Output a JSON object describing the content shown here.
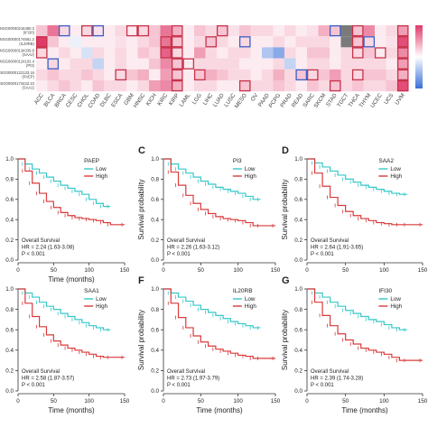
{
  "colors": {
    "low": "#37c7c7",
    "high": "#d93a3a",
    "heat_high": "#e03a6a",
    "heat_low": "#3a6fd8",
    "box_red": "#c8324a",
    "box_blue": "#3a5fc8",
    "grey": "#7a7a7a",
    "axis": "#333333"
  },
  "heatmap": {
    "row_labels": [
      "ENSG00000216490.3\n(IFI30)",
      "ENSG00000174561.2\n(IL20RB)",
      "ENSG00000134339.8\n(SAA2)",
      "ENSG00000124102.4\n(PI3)",
      "ENSG00000122133.16\n(PAEP)",
      "ENSG00000173432.10\n(SAA1)"
    ],
    "columns": [
      "ACC",
      "BLCA",
      "BRCA",
      "CESC",
      "CHOL",
      "COAD",
      "DLBC",
      "ESCA",
      "GBM",
      "HNSC",
      "KICH",
      "KIRC",
      "KIRP",
      "LAML",
      "LGG",
      "LIHC",
      "LUAD",
      "LUSC",
      "MESO",
      "OV",
      "PAAD",
      "PCPG",
      "PRAD",
      "READ",
      "SARC",
      "SKCM",
      "STAD",
      "TGCT",
      "THCA",
      "THYM",
      "UCEC",
      "UCS",
      "UVM"
    ],
    "values": [
      [
        0.3,
        0.7,
        0.2,
        0.1,
        0.2,
        0.15,
        0.1,
        0.2,
        0.1,
        0.2,
        0.3,
        0.7,
        0.4,
        0.1,
        0.3,
        0.2,
        0.3,
        0.15,
        0.3,
        0.2,
        0.2,
        0.1,
        0.2,
        0.1,
        0.15,
        0.4,
        0.3,
        0.4,
        0.3,
        0.6,
        0.1,
        0.2,
        0.5
      ],
      [
        1.0,
        0.3,
        0.1,
        -0.1,
        0.1,
        0.1,
        0.1,
        0.15,
        0.1,
        0.2,
        0.3,
        0.7,
        0.3,
        0.1,
        0.2,
        0.3,
        0.2,
        0.1,
        0.2,
        0.1,
        0.1,
        0.2,
        0.1,
        0.2,
        0.2,
        0.2,
        0.1,
        0.15,
        0.3,
        0.2,
        0.1,
        0.15,
        0.9
      ],
      [
        0.2,
        0.1,
        0.2,
        0.1,
        -0.2,
        0.2,
        0.1,
        0.2,
        0.1,
        0.3,
        0.2,
        0.8,
        0.2,
        0.1,
        0.5,
        0.2,
        0.1,
        0.2,
        0.2,
        0.1,
        -0.4,
        -0.6,
        0.2,
        0.1,
        0.3,
        0.3,
        0.1,
        0.2,
        0.2,
        0.3,
        0.1,
        0.2,
        0.6
      ],
      [
        0.1,
        0.2,
        0.1,
        0.2,
        0.2,
        -0.3,
        0.1,
        0.2,
        0.1,
        0.1,
        0.3,
        0.6,
        0.3,
        0.1,
        0.2,
        0.2,
        0.2,
        0.2,
        0.1,
        0.1,
        0.1,
        0.2,
        -0.3,
        0.1,
        0.2,
        0.2,
        0.1,
        0.2,
        0.2,
        0.2,
        0.2,
        0.1,
        0.5
      ],
      [
        0.2,
        0.3,
        0.2,
        0.2,
        0.3,
        0.2,
        0.1,
        0.2,
        0.3,
        0.4,
        0.1,
        0.5,
        0.3,
        0.1,
        0.3,
        0.4,
        0.3,
        0.2,
        0.2,
        0.1,
        0.2,
        0.4,
        0.2,
        0.3,
        0.2,
        0.3,
        0.5,
        0.2,
        0.2,
        0.3,
        0.3,
        0.2,
        0.4
      ],
      [
        0.1,
        0.2,
        0.3,
        0.2,
        0.1,
        0.3,
        0.2,
        0.2,
        0.1,
        0.2,
        0.5,
        0.6,
        0.4,
        0.1,
        0.2,
        0.2,
        0.1,
        0.1,
        0.3,
        0.2,
        0.2,
        0.3,
        0.2,
        0.1,
        0.3,
        0.2,
        0.3,
        0.2,
        0.3,
        0.2,
        0.2,
        0.3,
        0.9
      ]
    ],
    "na_cells": [
      [
        0,
        27
      ],
      [
        1,
        27
      ]
    ],
    "boxes_red": [
      [
        1,
        0
      ],
      [
        2,
        0
      ],
      [
        0,
        4
      ],
      [
        0,
        8
      ],
      [
        0,
        12
      ],
      [
        1,
        12
      ],
      [
        2,
        12
      ],
      [
        3,
        12
      ],
      [
        4,
        12
      ],
      [
        5,
        12
      ],
      [
        1,
        11
      ],
      [
        2,
        11
      ],
      [
        0,
        9
      ],
      [
        3,
        13
      ],
      [
        4,
        14
      ],
      [
        1,
        15
      ],
      [
        5,
        18
      ],
      [
        4,
        24
      ],
      [
        5,
        26
      ],
      [
        0,
        28
      ],
      [
        1,
        28
      ],
      [
        2,
        28
      ],
      [
        4,
        28
      ],
      [
        0,
        32
      ],
      [
        1,
        32
      ],
      [
        2,
        32
      ],
      [
        3,
        32
      ],
      [
        4,
        32
      ],
      [
        5,
        32
      ],
      [
        2,
        30
      ],
      [
        0,
        16
      ],
      [
        4,
        7
      ]
    ],
    "boxes_blue": [
      [
        0,
        2
      ],
      [
        0,
        5
      ],
      [
        1,
        18
      ],
      [
        4,
        23
      ],
      [
        0,
        26
      ],
      [
        1,
        29
      ],
      [
        3,
        1
      ]
    ]
  },
  "panels": [
    {
      "letter": "",
      "gene": "PAEP",
      "legend_low": "Low",
      "legend_high": "High",
      "os_label": "Overall Survival",
      "hr": "HR = 2.24 (1.63-3.08)",
      "pval": "P < 0.001",
      "show_ylabel": false
    },
    {
      "letter": "C",
      "gene": "PI3",
      "legend_low": "Low",
      "legend_high": "High",
      "os_label": "Overall Survival",
      "hr": "HR = 2.26 (1.63-3.12)",
      "pval": "P < 0.001",
      "show_ylabel": true
    },
    {
      "letter": "D",
      "gene": "SAA2",
      "legend_low": "Low",
      "legend_high": "High",
      "os_label": "Overall Survival",
      "hr": "HR = 2.64 (1.91-3.65)",
      "pval": "P < 0.001",
      "show_ylabel": true
    },
    {
      "letter": "",
      "gene": "SAA1",
      "legend_low": "Low",
      "legend_high": "High",
      "os_label": "Overall Survival",
      "hr": "HR = 2.58 (1.87-3.57)",
      "pval": "P < 0.001",
      "show_ylabel": false
    },
    {
      "letter": "F",
      "gene": "IL20RB",
      "legend_low": "Low",
      "legend_high": "High",
      "os_label": "Overall Survival",
      "hr": "HR = 2.73 (1.97-3.79)",
      "pval": "P < 0.001",
      "show_ylabel": true
    },
    {
      "letter": "G",
      "gene": "IFI30",
      "legend_low": "Low",
      "legend_high": "High",
      "os_label": "Overall Survival",
      "hr": "HR = 2.39 (1.74-3.28)",
      "pval": "P < 0.001",
      "show_ylabel": true
    }
  ],
  "axis": {
    "xlabel": "Time (months)",
    "ylabel": "Survival probability",
    "xticks": [
      "0",
      "50",
      "100",
      "150"
    ],
    "yticks": [
      "0.0",
      "0.2",
      "0.4",
      "0.6",
      "0.8",
      "1.0"
    ]
  },
  "chart_data": [
    {
      "type": "line",
      "title": "PAEP",
      "xlabel": "Time (months)",
      "ylabel": "",
      "xlim": [
        0,
        150
      ],
      "ylim": [
        0,
        1
      ],
      "series": [
        {
          "name": "Low",
          "x": [
            0,
            10,
            20,
            30,
            40,
            50,
            60,
            70,
            80,
            90,
            100,
            110,
            120,
            130
          ],
          "values": [
            1.0,
            0.95,
            0.9,
            0.86,
            0.82,
            0.78,
            0.74,
            0.71,
            0.68,
            0.65,
            0.6,
            0.56,
            0.53,
            0.53
          ]
        },
        {
          "name": "High",
          "x": [
            0,
            10,
            20,
            30,
            40,
            50,
            60,
            70,
            80,
            90,
            100,
            110,
            120,
            130,
            150
          ],
          "values": [
            1.0,
            0.88,
            0.76,
            0.66,
            0.58,
            0.52,
            0.47,
            0.44,
            0.42,
            0.41,
            0.4,
            0.39,
            0.37,
            0.35,
            0.35
          ]
        }
      ]
    },
    {
      "type": "line",
      "title": "PI3",
      "xlabel": "",
      "ylabel": "Survival probability",
      "xlim": [
        0,
        150
      ],
      "ylim": [
        0,
        1
      ],
      "series": [
        {
          "name": "Low",
          "x": [
            0,
            10,
            20,
            30,
            40,
            50,
            60,
            70,
            80,
            90,
            100,
            110,
            120,
            130
          ],
          "values": [
            1.0,
            0.95,
            0.9,
            0.86,
            0.82,
            0.78,
            0.75,
            0.72,
            0.7,
            0.68,
            0.66,
            0.63,
            0.6,
            0.6
          ]
        },
        {
          "name": "High",
          "x": [
            0,
            10,
            20,
            30,
            40,
            50,
            60,
            70,
            80,
            90,
            100,
            110,
            120,
            130,
            150
          ],
          "values": [
            1.0,
            0.87,
            0.74,
            0.64,
            0.56,
            0.5,
            0.46,
            0.43,
            0.41,
            0.4,
            0.39,
            0.37,
            0.34,
            0.34,
            0.34
          ]
        }
      ]
    },
    {
      "type": "line",
      "title": "SAA2",
      "xlabel": "",
      "ylabel": "Survival probability",
      "xlim": [
        0,
        150
      ],
      "ylim": [
        0,
        1
      ],
      "series": [
        {
          "name": "Low",
          "x": [
            0,
            10,
            20,
            30,
            40,
            50,
            60,
            70,
            80,
            90,
            100,
            110,
            120,
            130
          ],
          "values": [
            1.0,
            0.96,
            0.92,
            0.88,
            0.84,
            0.8,
            0.77,
            0.74,
            0.72,
            0.7,
            0.68,
            0.66,
            0.65,
            0.65
          ]
        },
        {
          "name": "High",
          "x": [
            0,
            10,
            20,
            30,
            40,
            50,
            60,
            70,
            80,
            90,
            100,
            110,
            120,
            130,
            150
          ],
          "values": [
            1.0,
            0.86,
            0.73,
            0.62,
            0.54,
            0.48,
            0.44,
            0.41,
            0.39,
            0.37,
            0.36,
            0.35,
            0.35,
            0.35,
            0.35
          ]
        }
      ]
    },
    {
      "type": "line",
      "title": "SAA1",
      "xlabel": "Time (months)",
      "ylabel": "",
      "xlim": [
        0,
        150
      ],
      "ylim": [
        0,
        1
      ],
      "series": [
        {
          "name": "Low",
          "x": [
            0,
            10,
            20,
            30,
            40,
            50,
            60,
            70,
            80,
            90,
            100,
            110,
            120,
            130
          ],
          "values": [
            1.0,
            0.96,
            0.92,
            0.87,
            0.83,
            0.8,
            0.76,
            0.73,
            0.7,
            0.67,
            0.64,
            0.62,
            0.6,
            0.6
          ]
        },
        {
          "name": "High",
          "x": [
            0,
            10,
            20,
            30,
            40,
            50,
            60,
            70,
            80,
            90,
            100,
            110,
            120,
            130,
            150
          ],
          "values": [
            1.0,
            0.86,
            0.73,
            0.63,
            0.55,
            0.49,
            0.45,
            0.42,
            0.4,
            0.38,
            0.36,
            0.34,
            0.33,
            0.33,
            0.33
          ]
        }
      ]
    },
    {
      "type": "line",
      "title": "IL20RB",
      "xlabel": "Time (months)",
      "ylabel": "Survival probability",
      "xlim": [
        0,
        150
      ],
      "ylim": [
        0,
        1
      ],
      "series": [
        {
          "name": "Low",
          "x": [
            0,
            10,
            20,
            30,
            40,
            50,
            60,
            70,
            80,
            90,
            100,
            110,
            120,
            130
          ],
          "values": [
            1.0,
            0.96,
            0.92,
            0.88,
            0.84,
            0.8,
            0.77,
            0.74,
            0.71,
            0.68,
            0.66,
            0.64,
            0.62,
            0.62
          ]
        },
        {
          "name": "High",
          "x": [
            0,
            10,
            20,
            30,
            40,
            50,
            60,
            70,
            80,
            90,
            100,
            110,
            120,
            130,
            150
          ],
          "values": [
            1.0,
            0.86,
            0.72,
            0.62,
            0.54,
            0.48,
            0.44,
            0.41,
            0.39,
            0.37,
            0.35,
            0.34,
            0.32,
            0.32,
            0.32
          ]
        }
      ]
    },
    {
      "type": "line",
      "title": "IFI30",
      "xlabel": "Time (months)",
      "ylabel": "Survival probability",
      "xlim": [
        0,
        150
      ],
      "ylim": [
        0,
        1
      ],
      "series": [
        {
          "name": "Low",
          "x": [
            0,
            10,
            20,
            30,
            40,
            50,
            60,
            70,
            80,
            90,
            100,
            110,
            120,
            130
          ],
          "values": [
            1.0,
            0.96,
            0.92,
            0.87,
            0.83,
            0.79,
            0.76,
            0.73,
            0.7,
            0.68,
            0.65,
            0.62,
            0.6,
            0.6
          ]
        },
        {
          "name": "High",
          "x": [
            0,
            10,
            20,
            30,
            40,
            50,
            60,
            70,
            80,
            90,
            100,
            110,
            120,
            130,
            150
          ],
          "values": [
            1.0,
            0.87,
            0.74,
            0.64,
            0.56,
            0.5,
            0.46,
            0.42,
            0.4,
            0.38,
            0.36,
            0.33,
            0.3,
            0.3,
            0.3
          ]
        }
      ]
    }
  ]
}
